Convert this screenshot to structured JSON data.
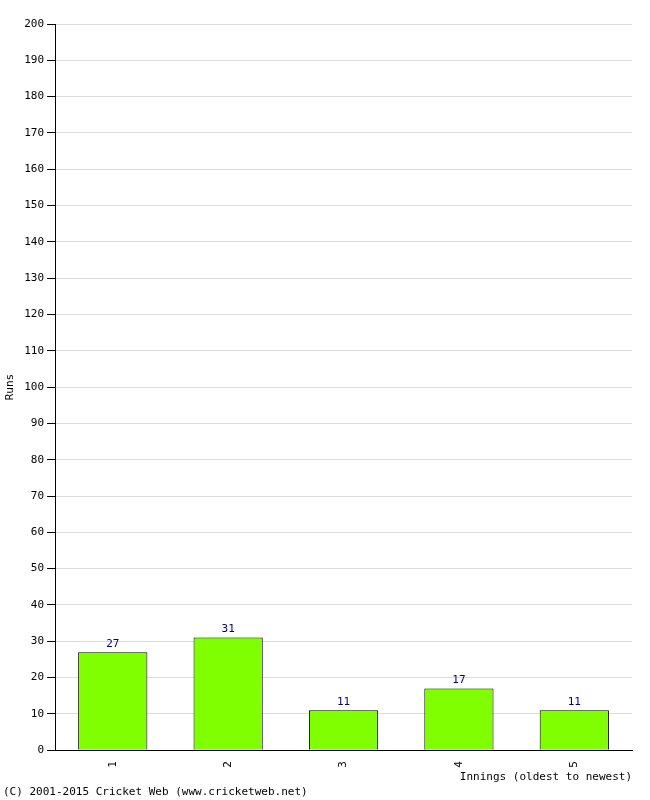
{
  "chart_data": {
    "type": "bar",
    "categories": [
      "1",
      "2",
      "3",
      "4",
      "5"
    ],
    "values": [
      27,
      31,
      11,
      17,
      11
    ],
    "color": "#80ff00",
    "x_label": "Innings (oldest to newest)",
    "y_label": "Runs",
    "annotations": [
      "(C) 2001-2015 Cricket Web (www.cricketweb.net)"
    ],
    "ylim": [
      0,
      200
    ],
    "yticks": [
      0,
      10,
      20,
      30,
      40,
      50,
      60,
      70,
      80,
      90,
      100,
      110,
      120,
      130,
      140,
      150,
      160,
      170,
      180,
      190,
      200
    ],
    "grid": true,
    "data_labels": true
  }
}
